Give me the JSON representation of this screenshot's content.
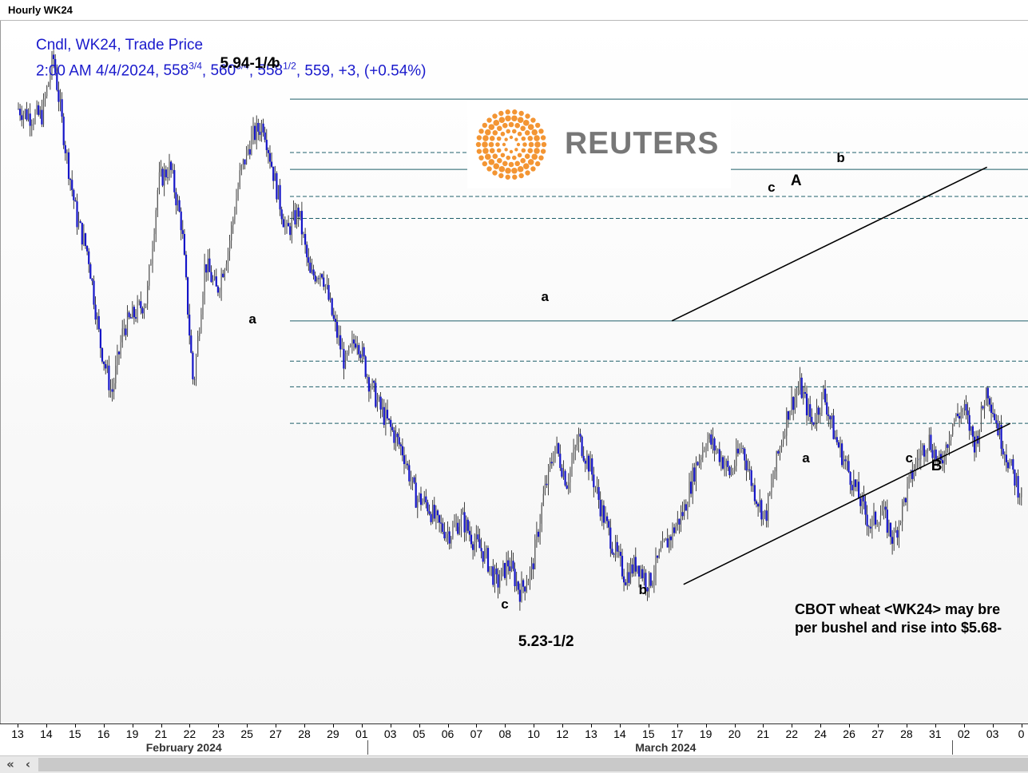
{
  "window": {
    "title": "Hourly WK24"
  },
  "legend": {
    "line1": "Cndl, WK24, Trade Price",
    "time": "2:00 AM 4/4/2024",
    "open_main": "558",
    "open_frac": "3/4",
    "high_main": "560",
    "high_frac": "3/4",
    "low_main": "558",
    "low_frac": "1/2",
    "close": "559",
    "change": "+3",
    "change_pct": "(+0.54%)"
  },
  "logo": {
    "text": "REUTERS",
    "dot_color": "#f39533",
    "text_color": "#777777",
    "icon": "reuters-sunburst-icon"
  },
  "annotation": {
    "line1": "CBOT wheat <WK24> may bre",
    "line2": "per bushel and rise into $5.68-"
  },
  "colors": {
    "candle": "#1515c8",
    "wick": "#111111",
    "fib_line": "#1f5f6a",
    "legend": "#1a1acc"
  },
  "chart_data": {
    "type": "candlestick",
    "symbol": "WK24",
    "interval": "Hourly",
    "ylim": [
      5.09,
      6.05
    ],
    "x_ticks": [
      "13",
      "14",
      "15",
      "16",
      "19",
      "21",
      "22",
      "23",
      "25",
      "27",
      "28",
      "29",
      "01",
      "03",
      "05",
      "06",
      "07",
      "08",
      "10",
      "12",
      "13",
      "14",
      "15",
      "17",
      "19",
      "20",
      "21",
      "22",
      "24",
      "26",
      "27",
      "28",
      "31",
      "02",
      "03",
      "0"
    ],
    "months": [
      "February 2024",
      "March 2024"
    ],
    "price_path": [
      [
        0,
        5.93
      ],
      [
        1,
        5.92
      ],
      [
        2,
        5.92
      ],
      [
        3,
        6.0
      ],
      [
        4,
        5.88
      ],
      [
        5,
        5.78
      ],
      [
        6,
        5.73
      ],
      [
        7,
        5.61
      ],
      [
        8,
        5.54
      ],
      [
        9,
        5.63
      ],
      [
        10,
        5.65
      ],
      [
        11,
        5.67
      ],
      [
        12,
        5.83
      ],
      [
        13,
        5.85
      ],
      [
        14,
        5.77
      ],
      [
        15,
        5.55
      ],
      [
        16,
        5.72
      ],
      [
        17,
        5.68
      ],
      [
        18,
        5.74
      ],
      [
        19,
        5.84
      ],
      [
        20,
        5.89
      ],
      [
        21,
        5.91
      ],
      [
        22,
        5.83
      ],
      [
        23,
        5.76
      ],
      [
        24,
        5.79
      ],
      [
        25,
        5.7
      ],
      [
        26,
        5.71
      ],
      [
        27,
        5.64
      ],
      [
        28,
        5.58
      ],
      [
        29,
        5.62
      ],
      [
        30,
        5.56
      ],
      [
        31,
        5.52
      ],
      [
        32,
        5.49
      ],
      [
        33,
        5.46
      ],
      [
        34,
        5.4
      ],
      [
        35,
        5.39
      ],
      [
        36,
        5.36
      ],
      [
        37,
        5.35
      ],
      [
        38,
        5.37
      ],
      [
        39,
        5.34
      ],
      [
        40,
        5.32
      ],
      [
        41,
        5.28
      ],
      [
        42,
        5.31
      ],
      [
        43,
        5.27
      ],
      [
        44,
        5.3
      ],
      [
        45,
        5.4
      ],
      [
        46,
        5.47
      ],
      [
        47,
        5.42
      ],
      [
        48,
        5.48
      ],
      [
        49,
        5.44
      ],
      [
        50,
        5.38
      ],
      [
        51,
        5.33
      ],
      [
        52,
        5.29
      ],
      [
        53,
        5.31
      ],
      [
        54,
        5.28
      ],
      [
        55,
        5.32
      ],
      [
        56,
        5.35
      ],
      [
        57,
        5.38
      ],
      [
        58,
        5.44
      ],
      [
        59,
        5.48
      ],
      [
        60,
        5.46
      ],
      [
        61,
        5.43
      ],
      [
        62,
        5.47
      ],
      [
        63,
        5.41
      ],
      [
        64,
        5.37
      ],
      [
        65,
        5.45
      ],
      [
        66,
        5.52
      ],
      [
        67,
        5.55
      ],
      [
        68,
        5.5
      ],
      [
        69,
        5.54
      ],
      [
        70,
        5.48
      ],
      [
        71,
        5.44
      ],
      [
        72,
        5.4
      ],
      [
        73,
        5.36
      ],
      [
        74,
        5.38
      ],
      [
        75,
        5.34
      ],
      [
        76,
        5.4
      ],
      [
        77,
        5.45
      ],
      [
        78,
        5.48
      ],
      [
        79,
        5.44
      ],
      [
        80,
        5.5
      ],
      [
        81,
        5.52
      ],
      [
        82,
        5.47
      ],
      [
        83,
        5.55
      ],
      [
        84,
        5.49
      ],
      [
        85,
        5.44
      ],
      [
        86,
        5.4
      ]
    ],
    "horizontal_levels": [
      {
        "price": 5.943,
        "style": "solid"
      },
      {
        "price": 5.87,
        "style": "dashed"
      },
      {
        "price": 5.847,
        "style": "solid"
      },
      {
        "price": 5.81,
        "style": "dashed"
      },
      {
        "price": 5.78,
        "style": "dashed"
      },
      {
        "price": 5.64,
        "style": "solid"
      },
      {
        "price": 5.585,
        "style": "dashed"
      },
      {
        "price": 5.55,
        "style": "dashed"
      },
      {
        "price": 5.5,
        "style": "dashed"
      }
    ],
    "channel_lines": [
      {
        "name": "upper",
        "from": [
          56,
          5.64
        ],
        "to": [
          83,
          5.85
        ]
      },
      {
        "name": "lower",
        "from": [
          57,
          5.28
        ],
        "to": [
          85,
          5.5
        ]
      }
    ],
    "wave_labels": [
      {
        "text": "5.94-1/4",
        "x": 7.2,
        "price": 5.99,
        "big": true
      },
      {
        "text": "b",
        "x": 9.0,
        "price": 5.99
      },
      {
        "text": "a",
        "x": 8.2,
        "price": 5.64
      },
      {
        "text": "a",
        "x": 18.4,
        "price": 5.67
      },
      {
        "text": "c",
        "x": 17.0,
        "price": 5.25
      },
      {
        "text": "5.23-1/2",
        "x": 17.6,
        "price": 5.2,
        "big": true
      },
      {
        "text": "b",
        "x": 21.8,
        "price": 5.27
      },
      {
        "text": "c",
        "x": 26.3,
        "price": 5.82
      },
      {
        "text": "A",
        "x": 27.1,
        "price": 5.83,
        "big": true
      },
      {
        "text": "b",
        "x": 28.7,
        "price": 5.86
      },
      {
        "text": "a",
        "x": 27.5,
        "price": 5.45
      },
      {
        "text": "c",
        "x": 31.1,
        "price": 5.45
      },
      {
        "text": "B",
        "x": 32.0,
        "price": 5.44,
        "big": true
      }
    ]
  }
}
